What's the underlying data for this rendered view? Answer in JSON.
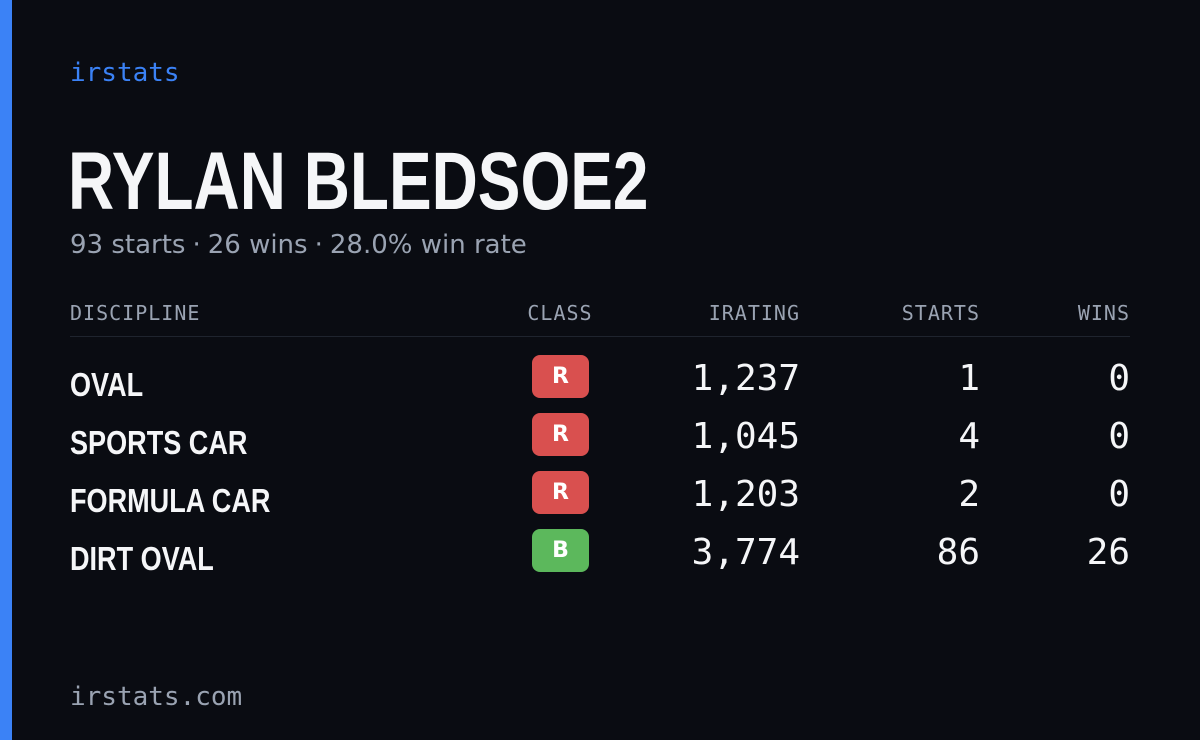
{
  "colors": {
    "accent": "#3b82f6",
    "class_R": "#d9504f",
    "class_B": "#5cb85c"
  },
  "brand": "irstats",
  "player": {
    "name": "RYLAN BLEDSOE2"
  },
  "summary": {
    "starts": "93 starts",
    "wins": "26 wins",
    "win_rate": "28.0% win rate",
    "separator": "·"
  },
  "table": {
    "headers": {
      "discipline": "DISCIPLINE",
      "class": "CLASS",
      "irating": "IRATING",
      "starts": "STARTS",
      "wins": "WINS"
    },
    "rows": [
      {
        "discipline": "OVAL",
        "class": "R",
        "irating": "1,237",
        "starts": "1",
        "wins": "0"
      },
      {
        "discipline": "SPORTS CAR",
        "class": "R",
        "irating": "1,045",
        "starts": "4",
        "wins": "0"
      },
      {
        "discipline": "FORMULA CAR",
        "class": "R",
        "irating": "1,203",
        "starts": "2",
        "wins": "0"
      },
      {
        "discipline": "DIRT OVAL",
        "class": "B",
        "irating": "3,774",
        "starts": "86",
        "wins": "26"
      }
    ]
  },
  "footer": {
    "url": "irstats.com"
  }
}
